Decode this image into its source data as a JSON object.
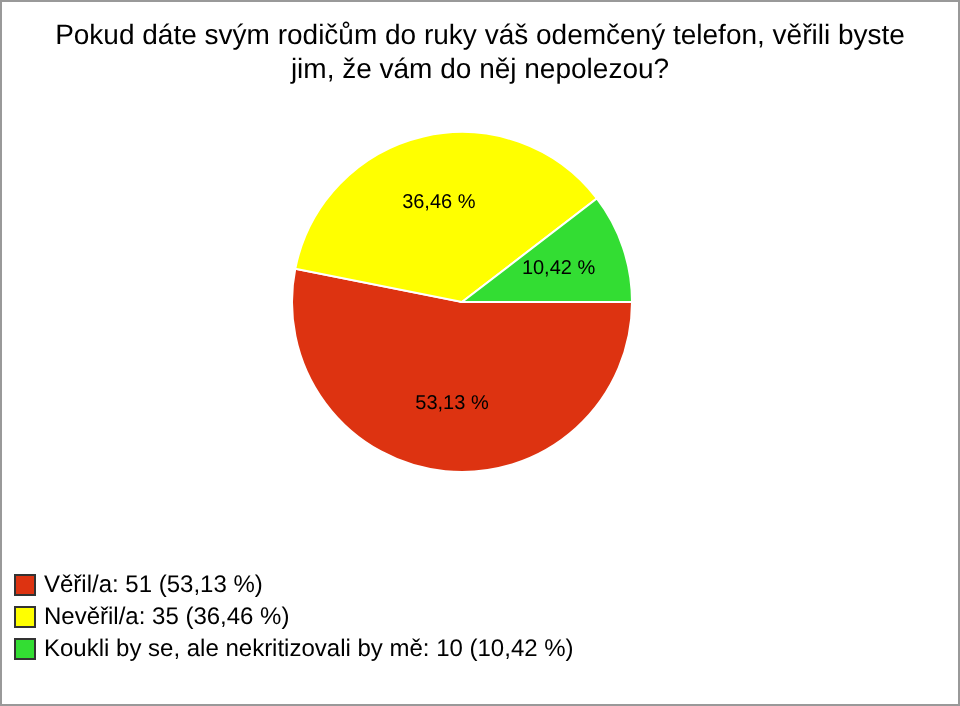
{
  "chart_data": {
    "type": "pie",
    "title": "Pokud dáte svým rodičům do ruky váš odemčený telefon, věřili byste jim, že vám do něj nepolezou?",
    "categories": [
      "Věřil/a: 51 (53,13 %)",
      "Nevěřil/a: 35 (36,46 %)",
      "Koukli by se, ale nekritizovali by mě: 10 (10,42 %)"
    ],
    "values": [
      53.13,
      36.46,
      10.42
    ],
    "value_labels": [
      "53,13 %",
      "36,46 %",
      "10,42 %"
    ],
    "colors": [
      "#dd3311",
      "#ffff00",
      "#33dd33"
    ],
    "legend": "bottom left"
  }
}
